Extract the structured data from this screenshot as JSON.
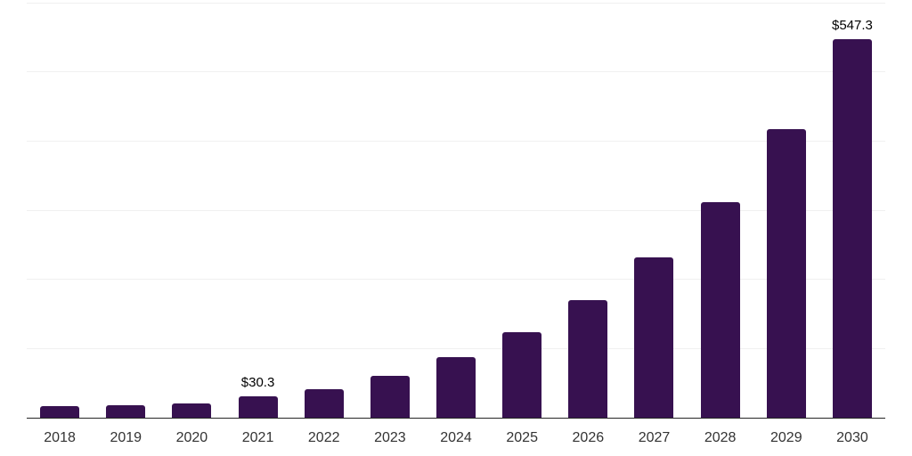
{
  "chart_data": {
    "type": "bar",
    "title": "",
    "xlabel": "",
    "ylabel": "",
    "categories": [
      "2018",
      "2019",
      "2020",
      "2021",
      "2022",
      "2023",
      "2024",
      "2025",
      "2026",
      "2027",
      "2028",
      "2029",
      "2030"
    ],
    "values": [
      16.3,
      18.1,
      21.0,
      30.3,
      41.6,
      60.1,
      87.7,
      123.2,
      170.3,
      231.7,
      311.9,
      416.6,
      547.3
    ],
    "value_labels": [
      {
        "index": 3,
        "text": "$30.3"
      },
      {
        "index": 12,
        "text": "$547.3"
      }
    ],
    "ylim": [
      0,
      600
    ],
    "gridline_values": [
      100,
      200,
      300,
      400,
      500,
      600
    ],
    "grid": true,
    "legend": "none",
    "colors": {
      "bar": "#371150",
      "gridline": "#f0f0f0",
      "axis": "#262626",
      "tick_label": "#333333",
      "value_label": "#000000",
      "background": "#ffffff"
    }
  }
}
